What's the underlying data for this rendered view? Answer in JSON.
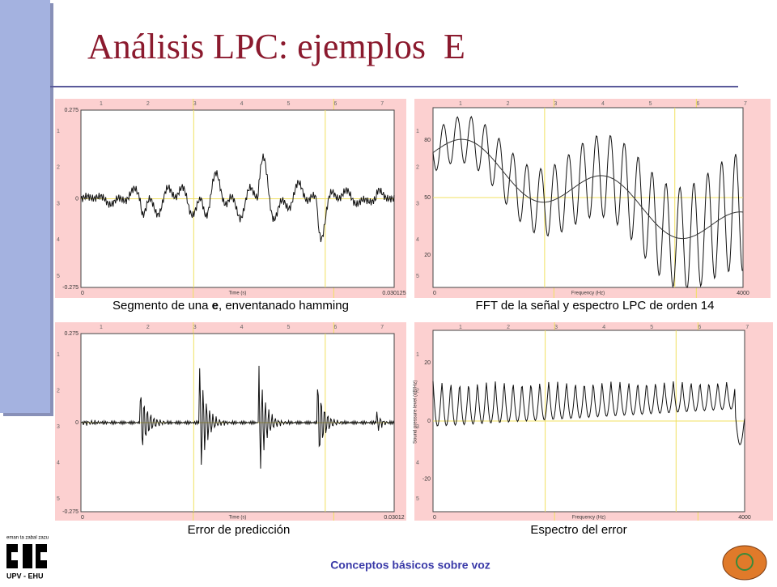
{
  "title": "Análisis LPC: ejemplos  E",
  "ruler": [
    "1",
    "2",
    "3",
    "4",
    "5",
    "6",
    "7"
  ],
  "side_ruler": [
    "1",
    "2",
    "3",
    "4",
    "5"
  ],
  "panels": [
    {
      "caption_parts": [
        "Segmento de una ",
        "e",
        ", enventanado hamming"
      ],
      "y_ticks": [
        "0.275",
        "0",
        "-0.275"
      ],
      "x_ticks": [
        "0",
        "0.030125"
      ],
      "x_label": "Time (s)"
    },
    {
      "caption_parts": [
        "FFT de la señal y espectro LPC de orden 14"
      ],
      "y_ticks": [
        "80",
        "50",
        "20"
      ],
      "x_ticks": [
        "0",
        "4000"
      ],
      "x_label": "Frequency (Hz)"
    },
    {
      "caption_parts": [
        "Error de predicción"
      ],
      "y_ticks": [
        "0.275",
        "0",
        "-0.275"
      ],
      "x_ticks": [
        "0",
        "0.03012"
      ],
      "x_label": "Time (s)"
    },
    {
      "caption_parts": [
        "Espectro del error"
      ],
      "y_ticks": [
        "20",
        "0",
        "-20"
      ],
      "x_ticks": [
        "0",
        "4000"
      ],
      "x_label": "Frequency (Hz)",
      "y_label": "Sound pressure level (dB/Hz)"
    }
  ],
  "footer": "Conceptos básicos sobre voz",
  "logo": {
    "motto": "eman ta zabal zazu",
    "name": "UPV - EHU"
  }
}
